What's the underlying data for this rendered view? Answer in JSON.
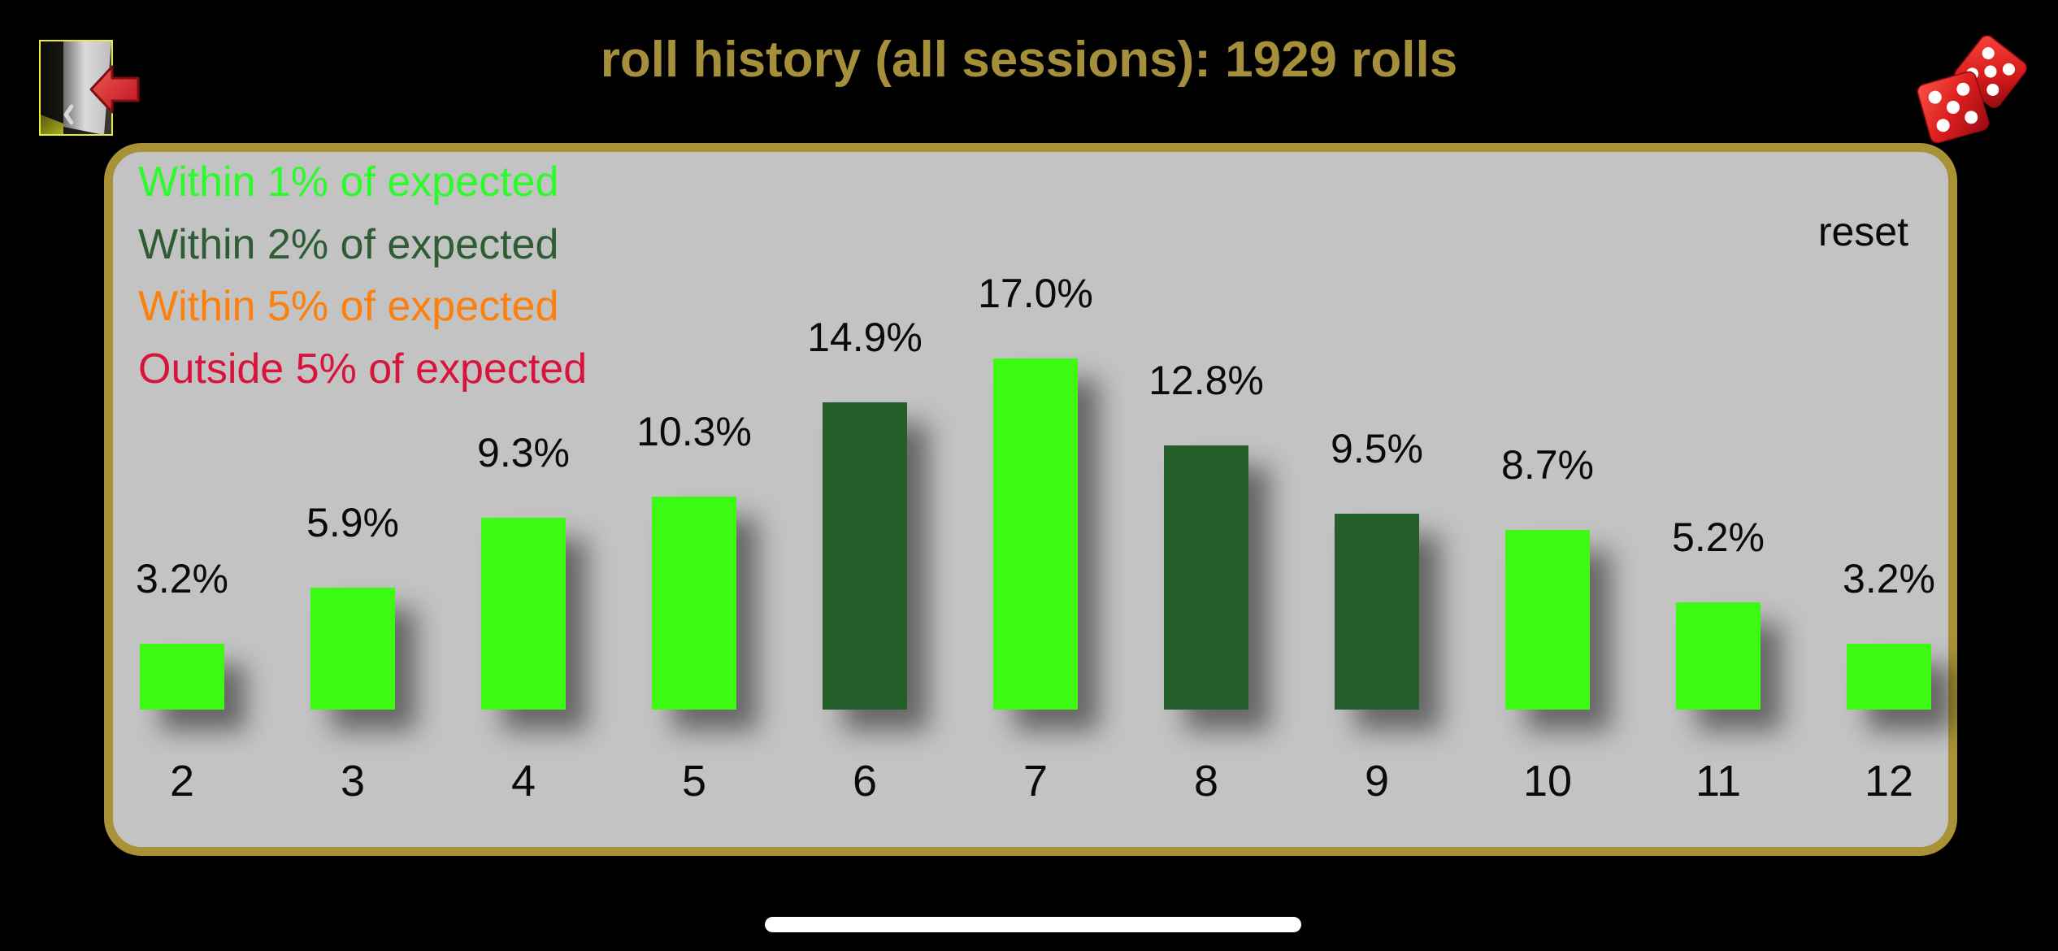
{
  "header": {
    "title": "roll history (all sessions): 1929 rolls",
    "title_color": "#A68F3B",
    "back_icon": "exit-door-with-red-arrow",
    "logo_icon": "pair-of-red-dice"
  },
  "panel": {
    "background": "#C3C3C3",
    "border_color": "#A89136",
    "reset_label": "reset",
    "legend": {
      "items": [
        {
          "label": "Within 1% of expected",
          "color": "#2BFB2B"
        },
        {
          "label": "Within 2% of expected",
          "color": "#2D5C35"
        },
        {
          "label": "Within 5% of expected",
          "color": "#FC800D"
        },
        {
          "label": "Outside 5% of expected",
          "color": "#D8143C"
        }
      ]
    }
  },
  "chart_data": {
    "type": "bar",
    "title": "roll history (all sessions): 1929 rolls",
    "total_rolls": 1929,
    "categories": [
      "2",
      "3",
      "4",
      "5",
      "6",
      "7",
      "8",
      "9",
      "10",
      "11",
      "12"
    ],
    "values": [
      3.2,
      5.9,
      9.3,
      10.3,
      14.9,
      17.0,
      12.8,
      9.5,
      8.7,
      5.2,
      3.2
    ],
    "value_labels": [
      "3.2%",
      "5.9%",
      "9.3%",
      "10.3%",
      "14.9%",
      "17.0%",
      "12.8%",
      "9.5%",
      "8.7%",
      "5.2%",
      "3.2%"
    ],
    "bar_classes": [
      "within1",
      "within1",
      "within1",
      "within1",
      "within2",
      "within1",
      "within2",
      "within2",
      "within1",
      "within1",
      "within1"
    ],
    "class_colors": {
      "within1": "#3CFA14",
      "within2": "#265E2B",
      "within5": "#FC800D",
      "outside5": "#D8143C"
    },
    "unit": "percent",
    "ylim": [
      0,
      18
    ],
    "grid": false,
    "legend_position": "top-left",
    "xlabel": "",
    "ylabel": ""
  },
  "system": {
    "home_indicator": true
  }
}
